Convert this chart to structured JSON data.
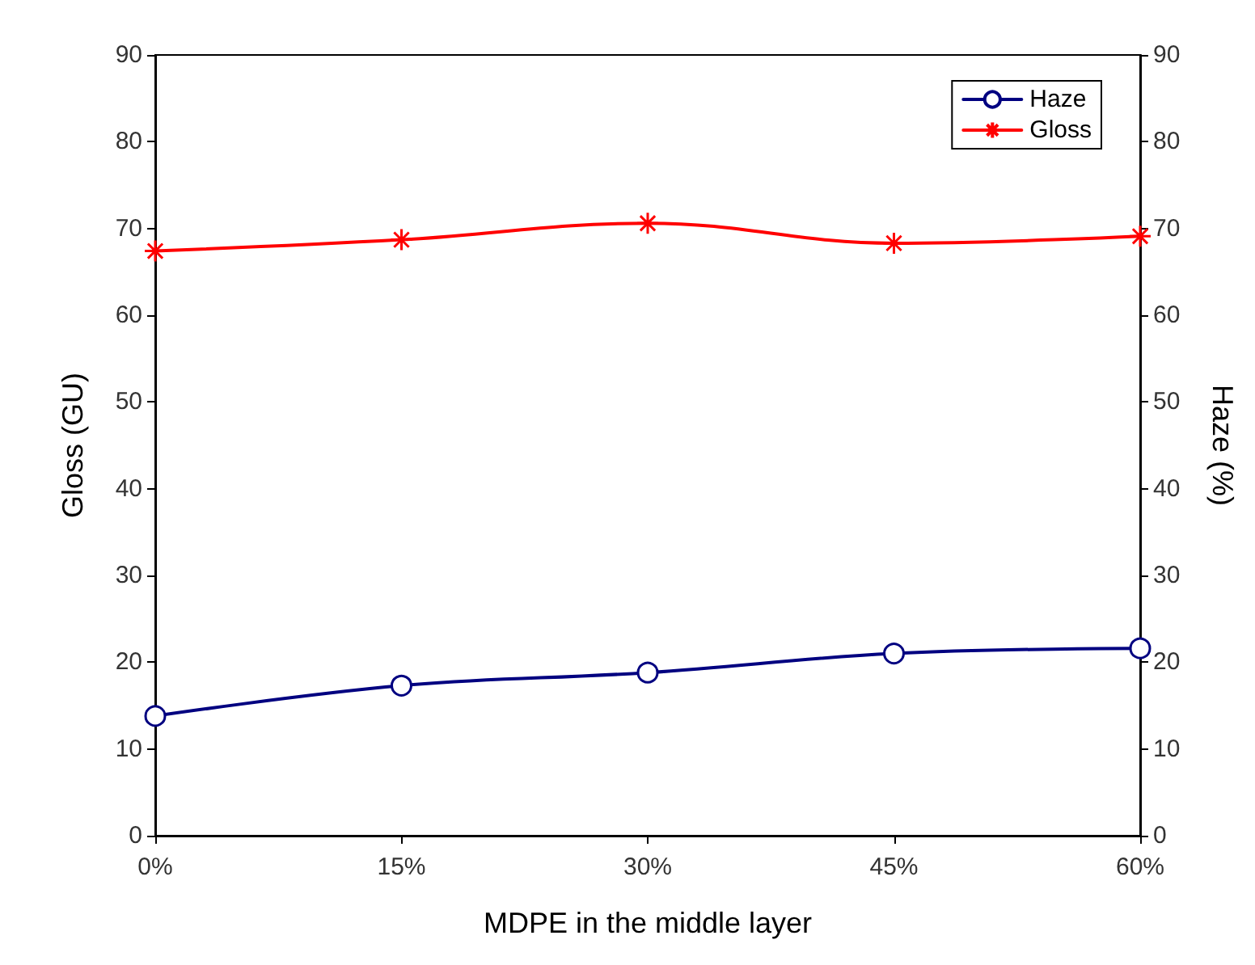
{
  "chart_data": {
    "type": "line",
    "xlabel": "MDPE in the middle layer",
    "ylabel": "Gloss (GU)",
    "y2label": "Haze (%)",
    "categories": [
      "0%",
      "15%",
      "30%",
      "45%",
      "60%"
    ],
    "series": [
      {
        "name": "Haze",
        "color": "#000080",
        "values": [
          13.8,
          17.3,
          18.8,
          21.0,
          21.6
        ],
        "axis": "y2",
        "marker": "circle"
      },
      {
        "name": "Gloss",
        "color": "#ff0000",
        "values": [
          67.4,
          68.7,
          70.6,
          68.3,
          69.1
        ],
        "marker": "cross"
      }
    ],
    "ylim": [
      0,
      90
    ],
    "yticks": [
      0,
      10,
      20,
      30,
      40,
      50,
      60,
      70,
      80,
      90
    ],
    "y2lim": [
      0,
      90
    ],
    "y2ticks": [
      0,
      10,
      20,
      30,
      40,
      50,
      60,
      70,
      80,
      90
    ],
    "grid": false,
    "legend": "top right",
    "line_style": "solid"
  }
}
